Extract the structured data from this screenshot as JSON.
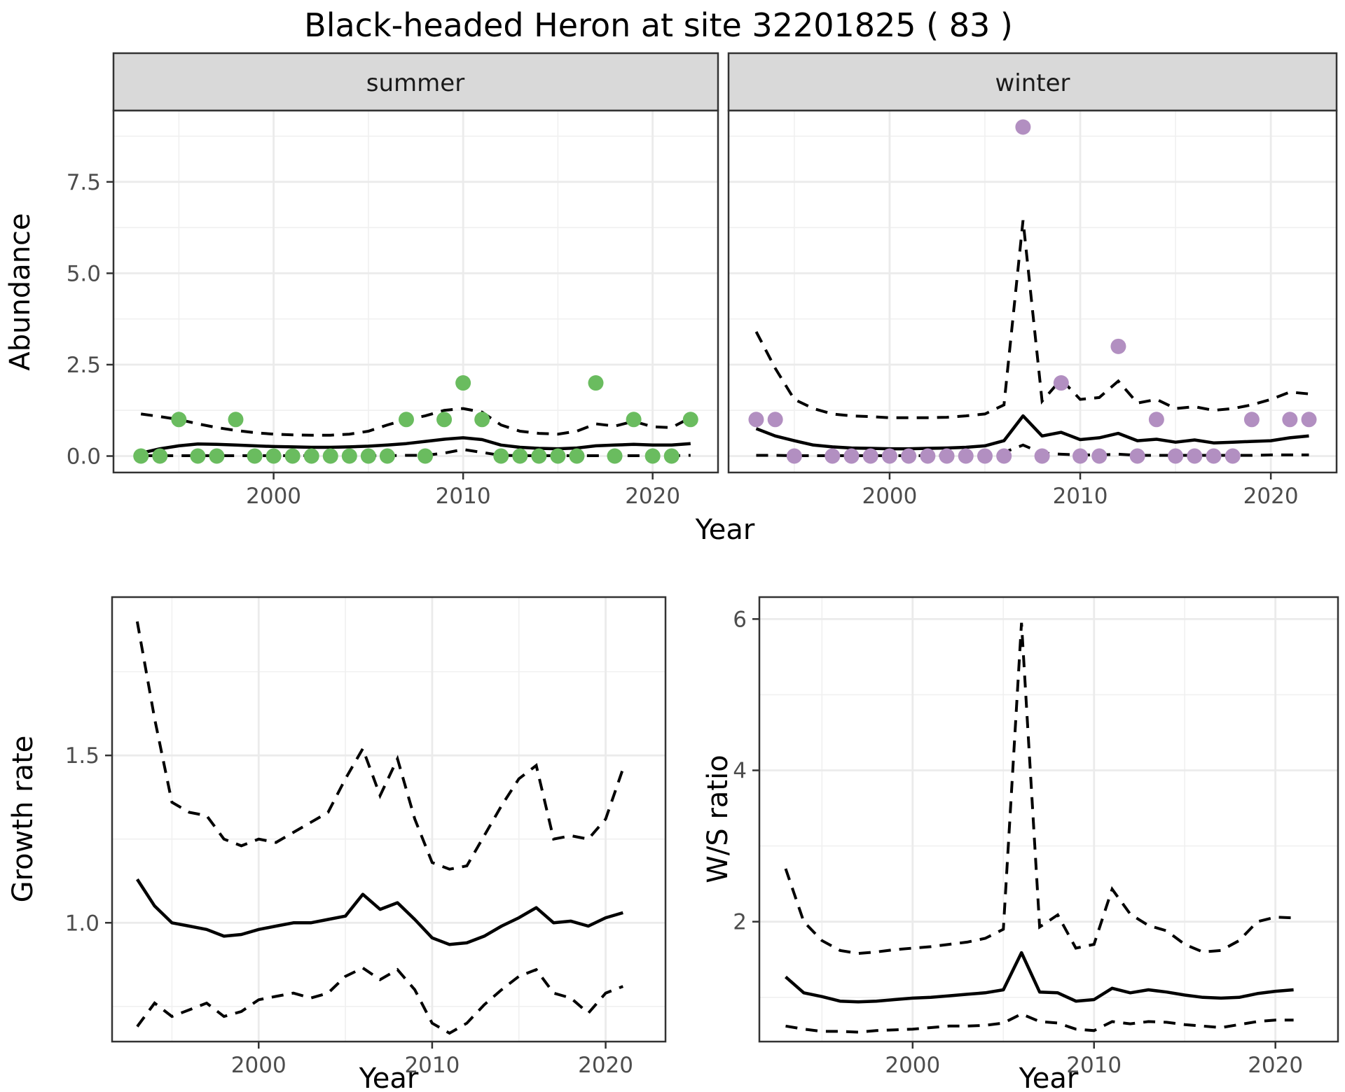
{
  "title": "Black-headed Heron at site 32201825 ( 83 )",
  "colors": {
    "background": "#ffffff",
    "panel_bg": "#ffffff",
    "grid_major": "#ebebeb",
    "grid_minor": "#f0f0f0",
    "panel_border": "#333333",
    "tick_mark": "#333333",
    "tick_text": "#4d4d4d",
    "line": "#000000",
    "summer_point": "#6abc5f",
    "winter_point": "#b28fc1"
  },
  "chart_data": [
    {
      "id": "abundance-summer",
      "type": "scatter",
      "facet_label": "summer",
      "xlabel": "Year",
      "ylabel": "Abundance",
      "x_domain": [
        1991.55,
        2023.45
      ],
      "y_domain": [
        -0.45,
        9.45
      ],
      "x_ticks": [
        {
          "v": 2000,
          "label": "2000"
        },
        {
          "v": 2010,
          "label": "2010"
        },
        {
          "v": 2020,
          "label": "2020"
        }
      ],
      "x_minor": [
        1995,
        2005,
        2015
      ],
      "y_ticks": [
        {
          "v": 0,
          "label": "0.0"
        },
        {
          "v": 2.5,
          "label": "2.5"
        },
        {
          "v": 5,
          "label": "5.0"
        },
        {
          "v": 7.5,
          "label": "7.5"
        }
      ],
      "y_minor": [
        1.25,
        3.75,
        6.25,
        8.75
      ],
      "grid": true,
      "legend": "none",
      "point_color": "#6abc5f",
      "years": [
        1993,
        1994,
        1995,
        1996,
        1997,
        1998,
        1999,
        2000,
        2001,
        2002,
        2003,
        2004,
        2005,
        2006,
        2007,
        2008,
        2009,
        2010,
        2011,
        2012,
        2013,
        2014,
        2015,
        2016,
        2017,
        2018,
        2019,
        2020,
        2021,
        2022
      ],
      "series": [
        {
          "name": "observed_count",
          "style": "points",
          "values": [
            0,
            0,
            1,
            0,
            0,
            1,
            0,
            0,
            0,
            0,
            0,
            0,
            0,
            0,
            1,
            0,
            1,
            2,
            1,
            0,
            0,
            0,
            0,
            0,
            2,
            0,
            1,
            0,
            0,
            1
          ]
        },
        {
          "name": "fitted_mean",
          "style": "solid",
          "values": [
            0.08,
            0.2,
            0.28,
            0.33,
            0.32,
            0.3,
            0.28,
            0.26,
            0.25,
            0.24,
            0.24,
            0.25,
            0.27,
            0.3,
            0.34,
            0.4,
            0.46,
            0.5,
            0.45,
            0.3,
            0.24,
            0.21,
            0.2,
            0.22,
            0.28,
            0.3,
            0.32,
            0.3,
            0.3,
            0.34
          ]
        },
        {
          "name": "upper_ci",
          "style": "dashed",
          "values": [
            1.15,
            1.08,
            1.0,
            0.88,
            0.78,
            0.7,
            0.64,
            0.6,
            0.58,
            0.57,
            0.57,
            0.6,
            0.68,
            0.85,
            1.0,
            1.1,
            1.25,
            1.3,
            1.2,
            0.85,
            0.68,
            0.62,
            0.6,
            0.68,
            0.88,
            0.82,
            0.95,
            0.8,
            0.78,
            1.05
          ]
        },
        {
          "name": "lower_ci",
          "style": "dashed",
          "values": [
            0.01,
            0.01,
            0.01,
            0.01,
            0.01,
            0.01,
            0.01,
            0.01,
            0.01,
            0.01,
            0.01,
            0.01,
            0.01,
            0.01,
            0.02,
            0.02,
            0.08,
            0.18,
            0.1,
            0.02,
            0.01,
            0.01,
            0.01,
            0.01,
            0.01,
            0.01,
            0.01,
            0.01,
            0.01,
            0.02
          ]
        }
      ]
    },
    {
      "id": "abundance-winter",
      "type": "scatter",
      "facet_label": "winter",
      "xlabel": "Year",
      "ylabel": "Abundance",
      "x_domain": [
        1991.55,
        2023.45
      ],
      "y_domain": [
        -0.45,
        9.45
      ],
      "x_ticks": [
        {
          "v": 2000,
          "label": "2000"
        },
        {
          "v": 2010,
          "label": "2010"
        },
        {
          "v": 2020,
          "label": "2020"
        }
      ],
      "x_minor": [
        1995,
        2005,
        2015
      ],
      "y_ticks": [
        {
          "v": 0,
          "label": "0.0"
        },
        {
          "v": 2.5,
          "label": "2.5"
        },
        {
          "v": 5,
          "label": "5.0"
        },
        {
          "v": 7.5,
          "label": "7.5"
        }
      ],
      "y_minor": [
        1.25,
        3.75,
        6.25,
        8.75
      ],
      "grid": true,
      "legend": "none",
      "point_color": "#b28fc1",
      "years": [
        1993,
        1994,
        1995,
        1996,
        1997,
        1998,
        1999,
        2000,
        2001,
        2002,
        2003,
        2004,
        2005,
        2006,
        2007,
        2008,
        2009,
        2010,
        2011,
        2012,
        2013,
        2014,
        2015,
        2016,
        2017,
        2018,
        2019,
        2020,
        2021,
        2022
      ],
      "series": [
        {
          "name": "observed_count",
          "style": "points",
          "values": [
            1,
            1,
            0,
            null,
            0,
            0,
            0,
            0,
            0,
            0,
            0,
            0,
            0,
            0,
            9,
            0,
            2,
            0,
            0,
            3,
            0,
            1,
            0,
            0,
            0,
            0,
            1,
            null,
            1,
            1
          ]
        },
        {
          "name": "fitted_mean",
          "style": "solid",
          "values": [
            0.75,
            0.55,
            0.42,
            0.3,
            0.25,
            0.22,
            0.21,
            0.2,
            0.2,
            0.21,
            0.22,
            0.24,
            0.28,
            0.42,
            1.1,
            0.55,
            0.65,
            0.45,
            0.5,
            0.62,
            0.42,
            0.46,
            0.38,
            0.44,
            0.36,
            0.38,
            0.4,
            0.42,
            0.5,
            0.55
          ]
        },
        {
          "name": "upper_ci",
          "style": "dashed",
          "values": [
            3.4,
            2.4,
            1.55,
            1.3,
            1.15,
            1.1,
            1.08,
            1.05,
            1.05,
            1.05,
            1.06,
            1.1,
            1.15,
            1.4,
            6.45,
            1.5,
            2.1,
            1.55,
            1.6,
            2.05,
            1.45,
            1.55,
            1.3,
            1.35,
            1.25,
            1.3,
            1.4,
            1.55,
            1.75,
            1.7
          ]
        },
        {
          "name": "lower_ci",
          "style": "dashed",
          "values": [
            0.02,
            0.02,
            0.01,
            0.01,
            0.01,
            0.01,
            0.01,
            0.01,
            0.01,
            0.01,
            0.01,
            0.02,
            0.05,
            0.1,
            0.3,
            0.08,
            0.05,
            0.03,
            0.03,
            0.05,
            0.02,
            0.02,
            0.02,
            0.02,
            0.02,
            0.02,
            0.02,
            0.03,
            0.03,
            0.03
          ]
        }
      ]
    },
    {
      "id": "growth-rate",
      "type": "line",
      "facet_label": "",
      "xlabel": "Year",
      "ylabel": "Growth rate",
      "x_domain": [
        1991.55,
        2023.45
      ],
      "y_domain": [
        0.645,
        1.973
      ],
      "x_ticks": [
        {
          "v": 2000,
          "label": "2000"
        },
        {
          "v": 2010,
          "label": "2010"
        },
        {
          "v": 2020,
          "label": "2020"
        }
      ],
      "x_minor": [
        1995,
        2005,
        2015
      ],
      "y_ticks": [
        {
          "v": 1.0,
          "label": "1.0"
        },
        {
          "v": 1.5,
          "label": "1.5"
        }
      ],
      "y_minor": [
        0.75,
        1.25,
        1.75
      ],
      "grid": true,
      "legend": "none",
      "years": [
        1993,
        1994,
        1995,
        1996,
        1997,
        1998,
        1999,
        2000,
        2001,
        2002,
        2003,
        2004,
        2005,
        2006,
        2007,
        2008,
        2009,
        2010,
        2011,
        2012,
        2013,
        2014,
        2015,
        2016,
        2017,
        2018,
        2019,
        2020,
        2021
      ],
      "series": [
        {
          "name": "growth_rate_mean",
          "style": "solid",
          "values": [
            1.13,
            1.05,
            1.0,
            0.99,
            0.98,
            0.96,
            0.965,
            0.98,
            0.99,
            1.0,
            1.0,
            1.01,
            1.02,
            1.085,
            1.04,
            1.06,
            1.01,
            0.955,
            0.935,
            0.94,
            0.96,
            0.99,
            1.015,
            1.045,
            1.0,
            1.005,
            0.99,
            1.015,
            1.03
          ]
        },
        {
          "name": "upper_ci",
          "style": "dashed",
          "values": [
            1.9,
            1.61,
            1.36,
            1.33,
            1.32,
            1.25,
            1.23,
            1.25,
            1.24,
            1.27,
            1.3,
            1.33,
            1.43,
            1.52,
            1.38,
            1.49,
            1.31,
            1.18,
            1.16,
            1.17,
            1.26,
            1.35,
            1.43,
            1.47,
            1.25,
            1.26,
            1.25,
            1.31,
            1.46
          ]
        },
        {
          "name": "lower_ci",
          "style": "dashed",
          "values": [
            0.69,
            0.76,
            0.72,
            0.74,
            0.76,
            0.72,
            0.735,
            0.77,
            0.78,
            0.79,
            0.775,
            0.79,
            0.84,
            0.865,
            0.83,
            0.86,
            0.8,
            0.7,
            0.67,
            0.7,
            0.755,
            0.8,
            0.84,
            0.86,
            0.79,
            0.775,
            0.73,
            0.79,
            0.81
          ]
        }
      ]
    },
    {
      "id": "ws-ratio",
      "type": "line",
      "facet_label": "",
      "xlabel": "Year",
      "ylabel": "W/S ratio",
      "x_domain": [
        1991.55,
        2023.45
      ],
      "y_domain": [
        0.415,
        6.29
      ],
      "x_ticks": [
        {
          "v": 2000,
          "label": "2000"
        },
        {
          "v": 2010,
          "label": "2010"
        },
        {
          "v": 2020,
          "label": "2020"
        }
      ],
      "x_minor": [
        1995,
        2005,
        2015
      ],
      "y_ticks": [
        {
          "v": 2,
          "label": "2"
        },
        {
          "v": 4,
          "label": "4"
        },
        {
          "v": 6,
          "label": "6"
        }
      ],
      "y_minor": [
        1,
        3,
        5
      ],
      "grid": true,
      "legend": "none",
      "years": [
        1993,
        1994,
        1995,
        1996,
        1997,
        1998,
        1999,
        2000,
        2001,
        2002,
        2003,
        2004,
        2005,
        2006,
        2007,
        2008,
        2009,
        2010,
        2011,
        2012,
        2013,
        2014,
        2015,
        2016,
        2017,
        2018,
        2019,
        2020,
        2021
      ],
      "series": [
        {
          "name": "ws_ratio_mean",
          "style": "solid",
          "values": [
            1.27,
            1.06,
            1.01,
            0.95,
            0.94,
            0.95,
            0.97,
            0.99,
            1.0,
            1.02,
            1.04,
            1.06,
            1.1,
            1.59,
            1.07,
            1.06,
            0.95,
            0.97,
            1.12,
            1.06,
            1.1,
            1.07,
            1.03,
            1.0,
            0.99,
            1.0,
            1.05,
            1.08,
            1.1
          ]
        },
        {
          "name": "upper_ci",
          "style": "dashed",
          "values": [
            2.7,
            2.0,
            1.75,
            1.62,
            1.58,
            1.6,
            1.63,
            1.65,
            1.67,
            1.7,
            1.73,
            1.78,
            1.9,
            5.95,
            1.93,
            2.09,
            1.65,
            1.7,
            2.43,
            2.1,
            1.95,
            1.88,
            1.7,
            1.6,
            1.62,
            1.75,
            2.0,
            2.06,
            2.05
          ]
        },
        {
          "name": "lower_ci",
          "style": "dashed",
          "values": [
            0.62,
            0.58,
            0.55,
            0.55,
            0.54,
            0.56,
            0.57,
            0.58,
            0.6,
            0.62,
            0.62,
            0.63,
            0.66,
            0.78,
            0.68,
            0.66,
            0.58,
            0.56,
            0.68,
            0.65,
            0.68,
            0.67,
            0.64,
            0.62,
            0.6,
            0.64,
            0.68,
            0.7,
            0.7
          ]
        }
      ]
    }
  ]
}
